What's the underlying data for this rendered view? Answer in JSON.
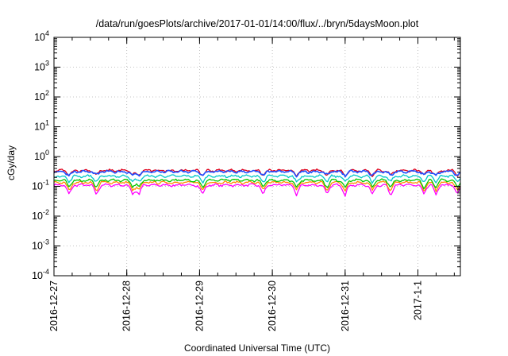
{
  "chart_data": {
    "type": "line",
    "title": "/data/run/goesPlots/archive/2017-01-01/14:00/flux/../bryn/5daysMoon.plot",
    "xlabel": "Coordinated Universal Time (UTC)",
    "ylabel": "cGy/day",
    "yscale": "log",
    "ylim": [
      0.0001,
      10000
    ],
    "y_ticks": [
      {
        "base": "10",
        "exp": "-4",
        "value": 0.0001
      },
      {
        "base": "10",
        "exp": "-3",
        "value": 0.001
      },
      {
        "base": "10",
        "exp": "-2",
        "value": 0.01
      },
      {
        "base": "10",
        "exp": "-1",
        "value": 0.1
      },
      {
        "base": "10",
        "exp": "0",
        "value": 1
      },
      {
        "base": "10",
        "exp": "1",
        "value": 10
      },
      {
        "base": "10",
        "exp": "2",
        "value": 100
      },
      {
        "base": "10",
        "exp": "3",
        "value": 1000
      },
      {
        "base": "10",
        "exp": "4",
        "value": 10000
      }
    ],
    "xlim": [
      "2016-12-27 00:00",
      "2017-01-01 14:00"
    ],
    "x_ticks": [
      "2016-12-27",
      "2016-12-28",
      "2016-12-29",
      "2016-12-30",
      "2016-12-31",
      "2017-1-1"
    ],
    "grid": true,
    "series": [
      {
        "color": "#ff00ff",
        "base": 0.11
      },
      {
        "color": "#ff8c00",
        "base": 0.135
      },
      {
        "color": "#00c800",
        "base": 0.16
      },
      {
        "color": "#00c8c8",
        "base": 0.22
      },
      {
        "color": "#e0001a",
        "base": 0.34
      },
      {
        "color": "#1f4fff",
        "base": 0.31
      }
    ],
    "dips": [
      "2016-12-27 05:00",
      "2016-12-27 14:00",
      "2016-12-28 02:00",
      "2016-12-28 04:00",
      "2016-12-29 01:00",
      "2016-12-29 21:00",
      "2016-12-30 08:00",
      "2016-12-30 18:00",
      "2016-12-31 00:00",
      "2016-12-31 09:00",
      "2016-12-31 15:00",
      "2017-01-01 02:00",
      "2017-01-01 06:00",
      "2017-01-01 13:00"
    ]
  }
}
